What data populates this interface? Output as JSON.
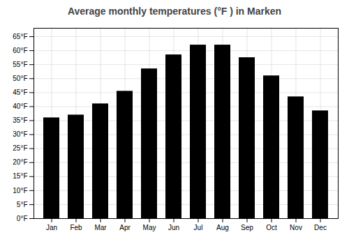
{
  "chart_data": {
    "type": "bar",
    "title": "Average monthly temperatures (°F ) in Marken",
    "categories": [
      "Jan",
      "Feb",
      "Mar",
      "Apr",
      "May",
      "Jun",
      "Jul",
      "Aug",
      "Sep",
      "Oct",
      "Nov",
      "Dec"
    ],
    "values": [
      36,
      37,
      41,
      45.5,
      53.5,
      58.5,
      62,
      62,
      57.5,
      51,
      43.5,
      38.5
    ],
    "ylim": [
      0,
      68
    ],
    "yticks": [
      {
        "value": 0,
        "label": "0°F"
      },
      {
        "value": 5,
        "label": "5°F"
      },
      {
        "value": 10,
        "label": "10°F"
      },
      {
        "value": 15,
        "label": "15°F"
      },
      {
        "value": 20,
        "label": "20°F"
      },
      {
        "value": 25,
        "label": "25°F"
      },
      {
        "value": 30,
        "label": "30°F"
      },
      {
        "value": 35,
        "label": "35°F"
      },
      {
        "value": 40,
        "label": "40°F"
      },
      {
        "value": 45,
        "label": "45°F"
      },
      {
        "value": 50,
        "label": "50°F"
      },
      {
        "value": 55,
        "label": "55°F"
      },
      {
        "value": 60,
        "label": "60°F"
      },
      {
        "value": 65,
        "label": "65°F"
      }
    ],
    "grid": true
  }
}
